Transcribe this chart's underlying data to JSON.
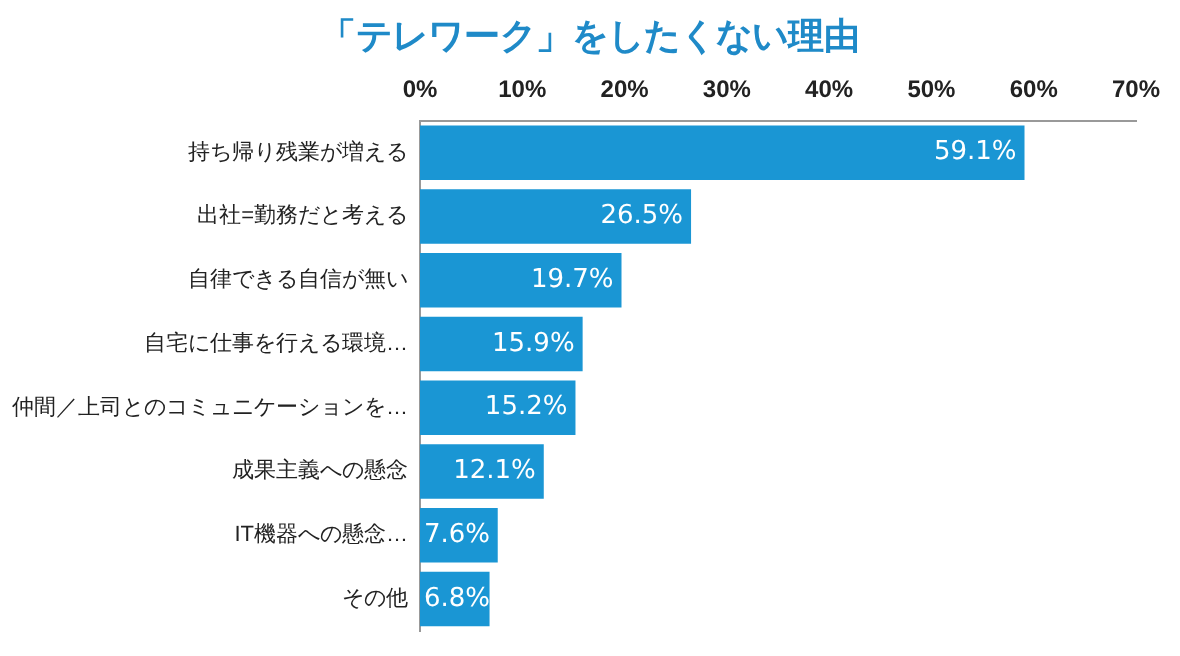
{
  "chart_data": {
    "type": "bar",
    "orientation": "horizontal",
    "title": "「テレワーク」をしたくない理由",
    "categories": [
      "持ち帰り残業が増える",
      "出社=勤務だと考える",
      "自律できる自信が無い",
      "自宅に仕事を行える環境…",
      "仲間／上司とのコミュニケーションを…",
      "成果主義への懸念",
      "IT機器への懸念…",
      "その他"
    ],
    "values": [
      59.1,
      26.5,
      19.7,
      15.9,
      15.2,
      12.1,
      7.6,
      6.8
    ],
    "value_labels": [
      "59.1%",
      "26.5%",
      "19.7%",
      "15.9%",
      "15.2%",
      "12.1%",
      "7.6%",
      "6.8%"
    ],
    "color": "#1a96d4",
    "xlim": [
      0,
      70
    ],
    "xticks": [
      {
        "value": 0,
        "label": "0%"
      },
      {
        "value": 10,
        "label": "10%"
      },
      {
        "value": 20,
        "label": "20%"
      },
      {
        "value": 30,
        "label": "30%"
      },
      {
        "value": 40,
        "label": "40%"
      },
      {
        "value": 50,
        "label": "50%"
      },
      {
        "value": 60,
        "label": "60%"
      },
      {
        "value": 70,
        "label": "70%"
      }
    ],
    "grid": false,
    "legend": false
  }
}
